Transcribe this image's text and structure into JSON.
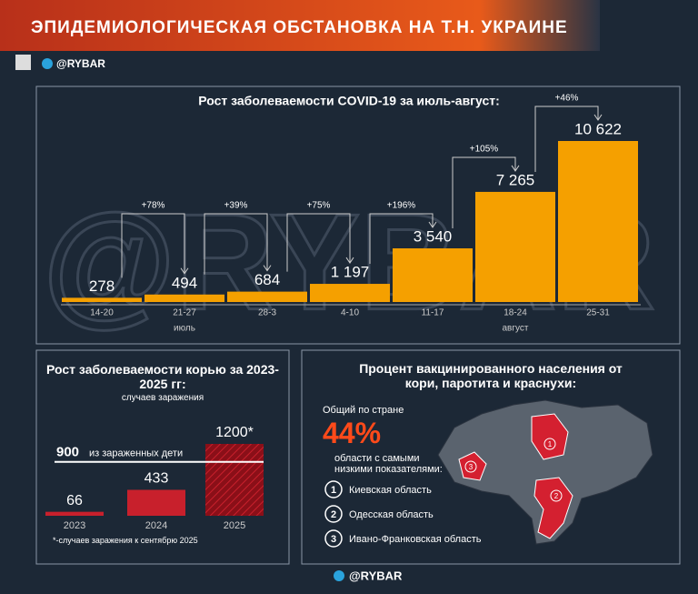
{
  "header": {
    "title": "ЭПИДЕМИОЛОГИЧЕСКАЯ ОБСТАНОВКА НА Т.Н. УКРАИНЕ",
    "handle": "@RYBAR"
  },
  "watermark": "@RYBAR",
  "chart_data": [
    {
      "type": "bar",
      "title": "Рост заболеваемости COVID-19 за июль-август:",
      "categories": [
        "14-20",
        "21-27",
        "28-3",
        "4-10",
        "11-17",
        "18-24",
        "25-31"
      ],
      "values": [
        278,
        494,
        684,
        1197,
        3540,
        7265,
        10622
      ],
      "value_labels": [
        "278",
        "494",
        "684",
        "1 197",
        "3 540",
        "7 265",
        "10 622"
      ],
      "growth_labels": [
        "+78%",
        "+39%",
        "+75%",
        "+196%",
        "+105%",
        "+46%"
      ],
      "groups": [
        "июль",
        "август"
      ],
      "color": "#f5a000"
    },
    {
      "type": "bar",
      "title": "Рост заболеваемости корью за 2023-2025 гг:",
      "subtitle": "случаев заражения",
      "categories": [
        "2023",
        "2024",
        "2025"
      ],
      "values": [
        66,
        433,
        1200
      ],
      "value_labels": [
        "66",
        "433",
        "1200*"
      ],
      "reference": {
        "value": 900,
        "label": "из зараженных дети"
      },
      "footnote": "*-случаев заражения к сентябрю 2025",
      "color": "#c8202c"
    }
  ],
  "vaccination": {
    "title": "Процент вакцинированного населения от кори, паротита и краснухи:",
    "national_label": "Общий по стране",
    "national_share": "44%",
    "lowest_label": "области с самыми низкими показателями:",
    "regions": [
      {
        "rank": 1,
        "name": "Киевская область"
      },
      {
        "rank": 2,
        "name": "Одесская область"
      },
      {
        "rank": 3,
        "name": "Ивано-Франковская область"
      }
    ]
  },
  "footer": {
    "handle": "@RYBAR"
  }
}
